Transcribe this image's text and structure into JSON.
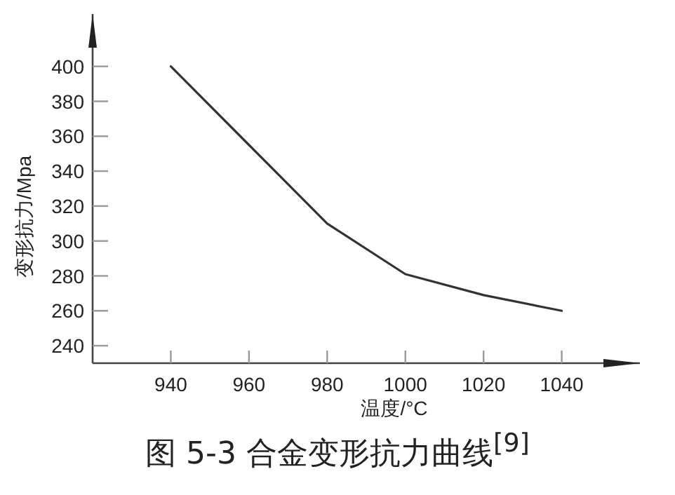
{
  "chart_data": {
    "type": "line",
    "title": "图 5-3 合金变形抗力曲线$^{[9]}$",
    "xlabel": "温度/°C",
    "ylabel": "变形抗力/Mpa",
    "x": [
      940,
      960,
      980,
      1000,
      1020,
      1040
    ],
    "series": [
      {
        "color": "#333333",
        "values": [
          400,
          355,
          310,
          281,
          269,
          260
        ]
      }
    ],
    "xlim": [
      920,
      1060
    ],
    "ylim": [
      230,
      430
    ],
    "xticks": [
      940,
      960,
      980,
      1000,
      1020,
      1040
    ],
    "yticks": [
      240,
      260,
      280,
      300,
      320,
      340,
      360,
      380,
      400
    ],
    "line_style": "solid"
  }
}
